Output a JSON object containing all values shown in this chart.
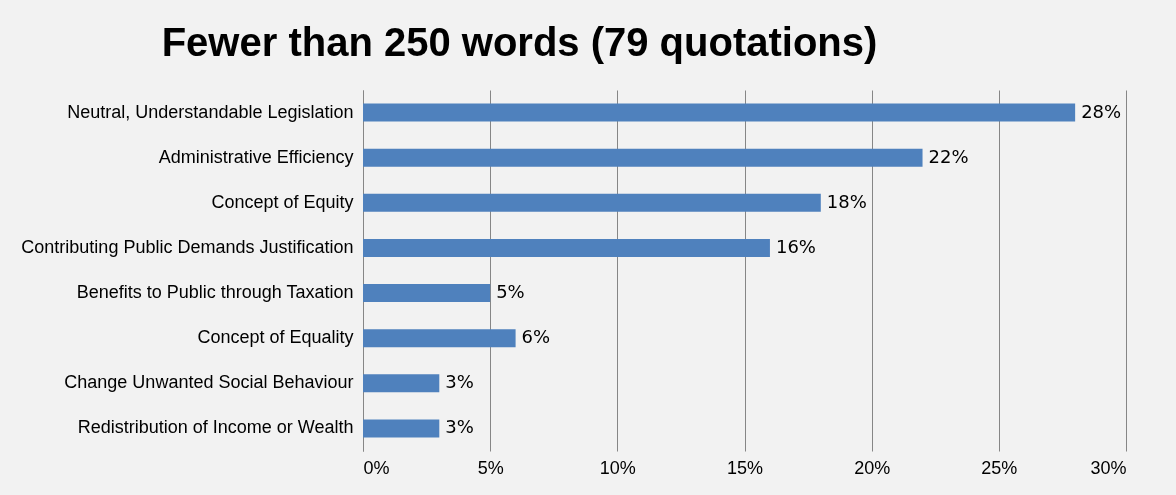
{
  "chart_data": {
    "type": "bar",
    "orientation": "horizontal",
    "title": "Fewer than 250 words (79 quotations)",
    "categories": [
      "Neutral, Understandable Legislation",
      "Administrative Efficiency",
      "Concept of Equity",
      "Contributing Public Demands Justification",
      "Benefits to Public through Taxation",
      "Concept of Equality",
      "Change Unwanted Social Behaviour",
      "Redistribution of Income or Wealth"
    ],
    "values": [
      28,
      22,
      18,
      16,
      5,
      6,
      3,
      3
    ],
    "value_labels": [
      "28%",
      "22%",
      "18%",
      "16%",
      "5%",
      "6%",
      "3%",
      "3%"
    ],
    "color": "#4f81bd",
    "xlim": [
      0,
      30
    ],
    "xticks": [
      {
        "value": 0,
        "label": "0%"
      },
      {
        "value": 5,
        "label": "5%"
      },
      {
        "value": 10,
        "label": "10%"
      },
      {
        "value": 15,
        "label": "15%"
      },
      {
        "value": 20,
        "label": "20%"
      },
      {
        "value": 25,
        "label": "25%"
      },
      {
        "value": 30,
        "label": "30%"
      }
    ],
    "grid": "x"
  }
}
